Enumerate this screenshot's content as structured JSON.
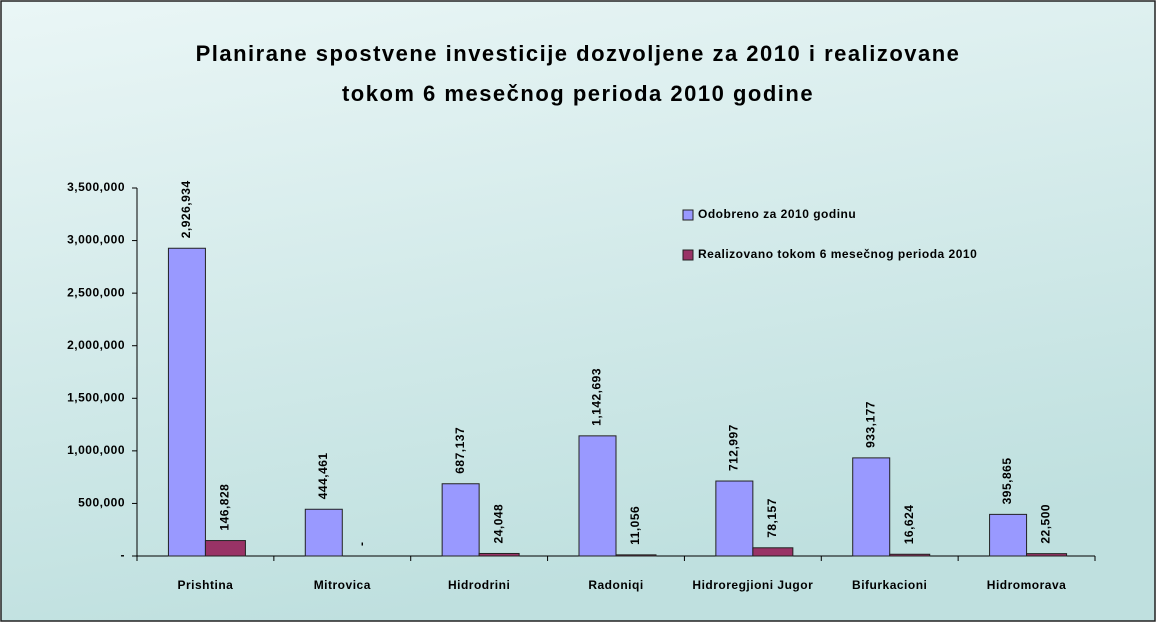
{
  "chart_data": {
    "type": "bar",
    "title_lines": [
      "Planirane spostvene investicije dozvoljene za 2010 i realizovane",
      "tokom 6 mesečnog perioda 2010 godine"
    ],
    "categories": [
      "Prishtina",
      "Mitrovica",
      "Hidrodrini",
      "Radoniqi",
      "Hidroregjioni Jugor",
      "Bifurkacioni",
      "Hidromorava"
    ],
    "series": [
      {
        "name": "Odobreno za 2010 godinu",
        "color": "#9999ff",
        "values": [
          2926934,
          444461,
          687137,
          1142693,
          712997,
          933177,
          395865
        ],
        "value_labels": [
          "2,926,934",
          "444,461",
          "687,137",
          "1,142,693",
          "712,997",
          "933,177",
          "395,865"
        ]
      },
      {
        "name": "Realizovano tokom 6 mesečnog perioda 2010",
        "color": "#993366",
        "values": [
          146828,
          0,
          24048,
          11056,
          78157,
          16624,
          22500
        ],
        "value_labels": [
          "146,828",
          "-",
          "24,048",
          "11,056",
          "78,157",
          "16,624",
          "22,500"
        ]
      }
    ],
    "ylim": [
      0,
      3500000
    ],
    "yticks": [
      {
        "value": 0,
        "label": "-"
      },
      {
        "value": 500000,
        "label": "500,000"
      },
      {
        "value": 1000000,
        "label": "1,000,000"
      },
      {
        "value": 1500000,
        "label": "1,500,000"
      },
      {
        "value": 2000000,
        "label": "2,000,000"
      },
      {
        "value": 2500000,
        "label": "2,500,000"
      },
      {
        "value": 3000000,
        "label": "3,000,000"
      },
      {
        "value": 3500000,
        "label": "3,500,000"
      }
    ],
    "grid": false,
    "legend": "upper right"
  }
}
